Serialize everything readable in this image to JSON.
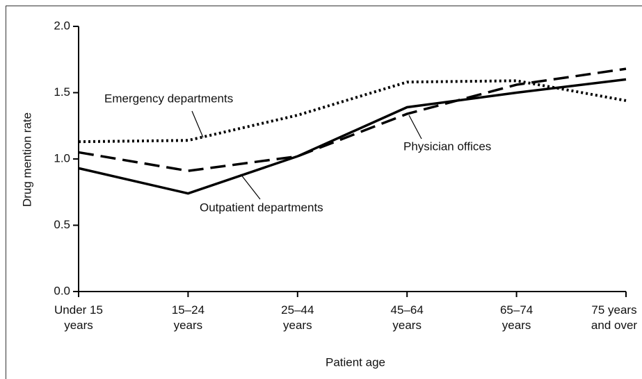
{
  "chart_data": {
    "type": "line",
    "xlabel": "Patient age",
    "ylabel": "Drug mention rate",
    "categories": [
      "Under 15 years",
      "15–24 years",
      "25–44 years",
      "45–64 years",
      "65–74 years",
      "75 years and over"
    ],
    "series": [
      {
        "name": "Physician offices",
        "color": "#000000",
        "linestyle": "dashed",
        "values": [
          1.05,
          0.91,
          1.02,
          1.34,
          1.56,
          1.68
        ]
      },
      {
        "name": "Outpatient departments",
        "color": "#000000",
        "linestyle": "solid",
        "values": [
          0.93,
          0.74,
          1.02,
          1.39,
          1.5,
          1.6
        ]
      },
      {
        "name": "Emergency departments",
        "color": "#000000",
        "linestyle": "dotted",
        "values": [
          1.13,
          1.14,
          1.33,
          1.58,
          1.59,
          1.44
        ]
      }
    ],
    "ylim": [
      0,
      2.0
    ],
    "yticks": [
      {
        "value": 0,
        "label": "0.0"
      },
      0.5,
      {
        "value": 1,
        "label": "1.0"
      },
      1.5,
      {
        "value": 2,
        "label": "2.0"
      }
    ],
    "grid": false
  }
}
